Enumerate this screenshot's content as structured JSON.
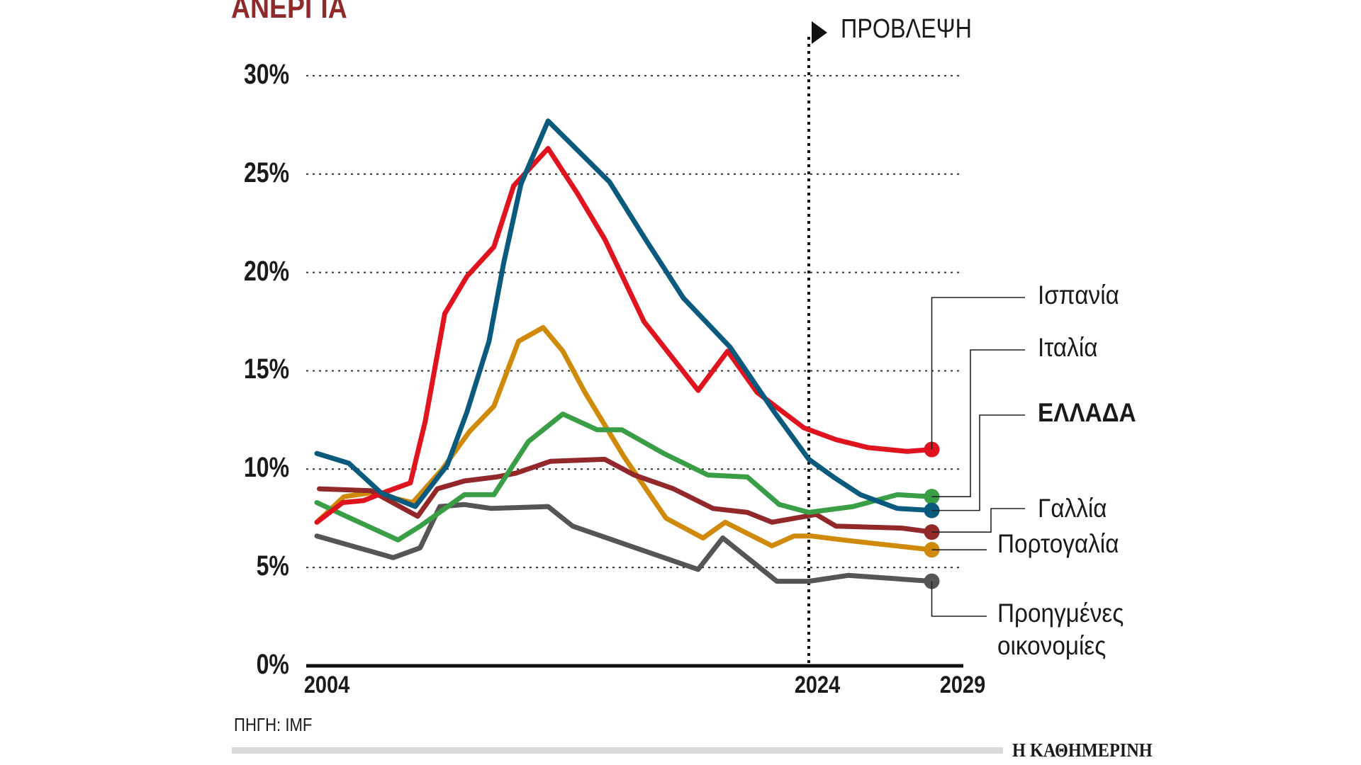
{
  "chart_data": {
    "type": "line",
    "title": "ΑΝΕΡΓΙΑ",
    "forecast_label": "ΠΡΟΒΛΕΨΗ",
    "forecast_start_year": 2024,
    "xlabel": "",
    "ylabel": "",
    "xlim": [
      2004,
      2029
    ],
    "ylim": [
      0,
      30
    ],
    "x_ticks": [
      "2004",
      "2024",
      "2029"
    ],
    "y_ticks": [
      "0%",
      "5%",
      "10%",
      "15%",
      "20%",
      "25%",
      "30%"
    ],
    "grid": true,
    "series": [
      {
        "name": "Ισπανία",
        "color": "#e0141e",
        "bold": false,
        "points": [
          [
            2004,
            7.3
          ],
          [
            2005.05,
            8.3
          ],
          [
            2005.9,
            8.4
          ],
          [
            2006.7,
            8.8
          ],
          [
            2007.8,
            9.3
          ],
          [
            2008.4,
            12.4
          ],
          [
            2009.2,
            17.9
          ],
          [
            2010.1,
            19.8
          ],
          [
            2011.2,
            21.3
          ],
          [
            2012.0,
            24.4
          ],
          [
            2013.4,
            26.3
          ],
          [
            2014.6,
            24.0
          ],
          [
            2015.7,
            21.7
          ],
          [
            2017.3,
            17.5
          ],
          [
            2019.5,
            14.0
          ],
          [
            2020.7,
            16.0
          ],
          [
            2021.9,
            13.9
          ],
          [
            2023.8,
            12.1
          ],
          [
            2025.1,
            11.5
          ],
          [
            2026.4,
            11.1
          ],
          [
            2028.0,
            10.9
          ],
          [
            2029,
            11.0
          ]
        ]
      },
      {
        "name": "Ιταλία",
        "color": "#3a9e46",
        "bold": false,
        "points": [
          [
            2004,
            8.3
          ],
          [
            2005.2,
            7.6
          ],
          [
            2007.3,
            6.4
          ],
          [
            2008.2,
            7.1
          ],
          [
            2010.0,
            8.7
          ],
          [
            2011.2,
            8.7
          ],
          [
            2012.6,
            11.4
          ],
          [
            2014.0,
            12.8
          ],
          [
            2015.4,
            12.0
          ],
          [
            2016.4,
            12.0
          ],
          [
            2018.1,
            10.8
          ],
          [
            2019.9,
            9.7
          ],
          [
            2021.5,
            9.6
          ],
          [
            2022.8,
            8.2
          ],
          [
            2024.0,
            7.8
          ],
          [
            2025.8,
            8.1
          ],
          [
            2027.6,
            8.7
          ],
          [
            2029,
            8.6
          ]
        ]
      },
      {
        "name": "ΕΛΛΑΔΑ",
        "color": "#0a5a7d",
        "bold": true,
        "points": [
          [
            2004,
            10.8
          ],
          [
            2005.3,
            10.3
          ],
          [
            2006.6,
            8.8
          ],
          [
            2008.0,
            8.1
          ],
          [
            2009.3,
            10.2
          ],
          [
            2010.1,
            12.9
          ],
          [
            2011.0,
            16.5
          ],
          [
            2011.6,
            20.5
          ],
          [
            2012.3,
            24.5
          ],
          [
            2013.4,
            27.7
          ],
          [
            2015.9,
            24.6
          ],
          [
            2017.3,
            21.8
          ],
          [
            2018.9,
            18.7
          ],
          [
            2020.8,
            16.2
          ],
          [
            2022.6,
            12.9
          ],
          [
            2024.0,
            10.5
          ],
          [
            2025.0,
            9.6
          ],
          [
            2026.1,
            8.7
          ],
          [
            2027.6,
            8.0
          ],
          [
            2029,
            7.9
          ]
        ]
      },
      {
        "name": "Γαλλία",
        "color": "#93282a",
        "bold": false,
        "points": [
          [
            2004.1,
            9.0
          ],
          [
            2006.2,
            8.9
          ],
          [
            2008.1,
            7.6
          ],
          [
            2008.9,
            9.0
          ],
          [
            2010.0,
            9.4
          ],
          [
            2011.3,
            9.6
          ],
          [
            2012.1,
            9.8
          ],
          [
            2013.5,
            10.4
          ],
          [
            2015.7,
            10.5
          ],
          [
            2016.9,
            9.7
          ],
          [
            2018.5,
            9.0
          ],
          [
            2020.1,
            8.0
          ],
          [
            2021.5,
            7.8
          ],
          [
            2022.5,
            7.3
          ],
          [
            2024.3,
            7.7
          ],
          [
            2025.1,
            7.1
          ],
          [
            2027.8,
            7.0
          ],
          [
            2029,
            6.8
          ]
        ]
      },
      {
        "name": "Πορτογαλία",
        "color": "#d08a0a",
        "bold": false,
        "points": [
          [
            2004,
            7.3
          ],
          [
            2005.1,
            8.6
          ],
          [
            2006.2,
            8.8
          ],
          [
            2007.9,
            8.3
          ],
          [
            2009.1,
            10.0
          ],
          [
            2010.2,
            11.9
          ],
          [
            2011.2,
            13.2
          ],
          [
            2012.2,
            16.5
          ],
          [
            2013.2,
            17.2
          ],
          [
            2014.0,
            16.0
          ],
          [
            2014.9,
            13.9
          ],
          [
            2016.5,
            10.6
          ],
          [
            2018.2,
            7.5
          ],
          [
            2019.7,
            6.5
          ],
          [
            2020.6,
            7.3
          ],
          [
            2022.5,
            6.1
          ],
          [
            2023.4,
            6.6
          ],
          [
            2024.1,
            6.6
          ],
          [
            2025.4,
            6.4
          ],
          [
            2026.8,
            6.2
          ],
          [
            2029,
            5.9
          ]
        ]
      },
      {
        "name": "Προηγμένες οικονομίες",
        "label_lines": [
          "Προηγμένες",
          "οικονομίες"
        ],
        "color": "#555555",
        "bold": false,
        "points": [
          [
            2004,
            6.6
          ],
          [
            2007.1,
            5.5
          ],
          [
            2008.2,
            6.0
          ],
          [
            2009.0,
            8.1
          ],
          [
            2010.0,
            8.2
          ],
          [
            2011.1,
            8.0
          ],
          [
            2013.4,
            8.1
          ],
          [
            2014.4,
            7.1
          ],
          [
            2019.5,
            4.9
          ],
          [
            2020.5,
            6.5
          ],
          [
            2022.7,
            4.3
          ],
          [
            2024.0,
            4.3
          ],
          [
            2025.6,
            4.6
          ],
          [
            2029,
            4.3
          ]
        ]
      }
    ],
    "source": "ΠΗΓΗ: IMF",
    "publisher": "Η ΚΑΘΗΜΕΡΙΝΗ"
  }
}
